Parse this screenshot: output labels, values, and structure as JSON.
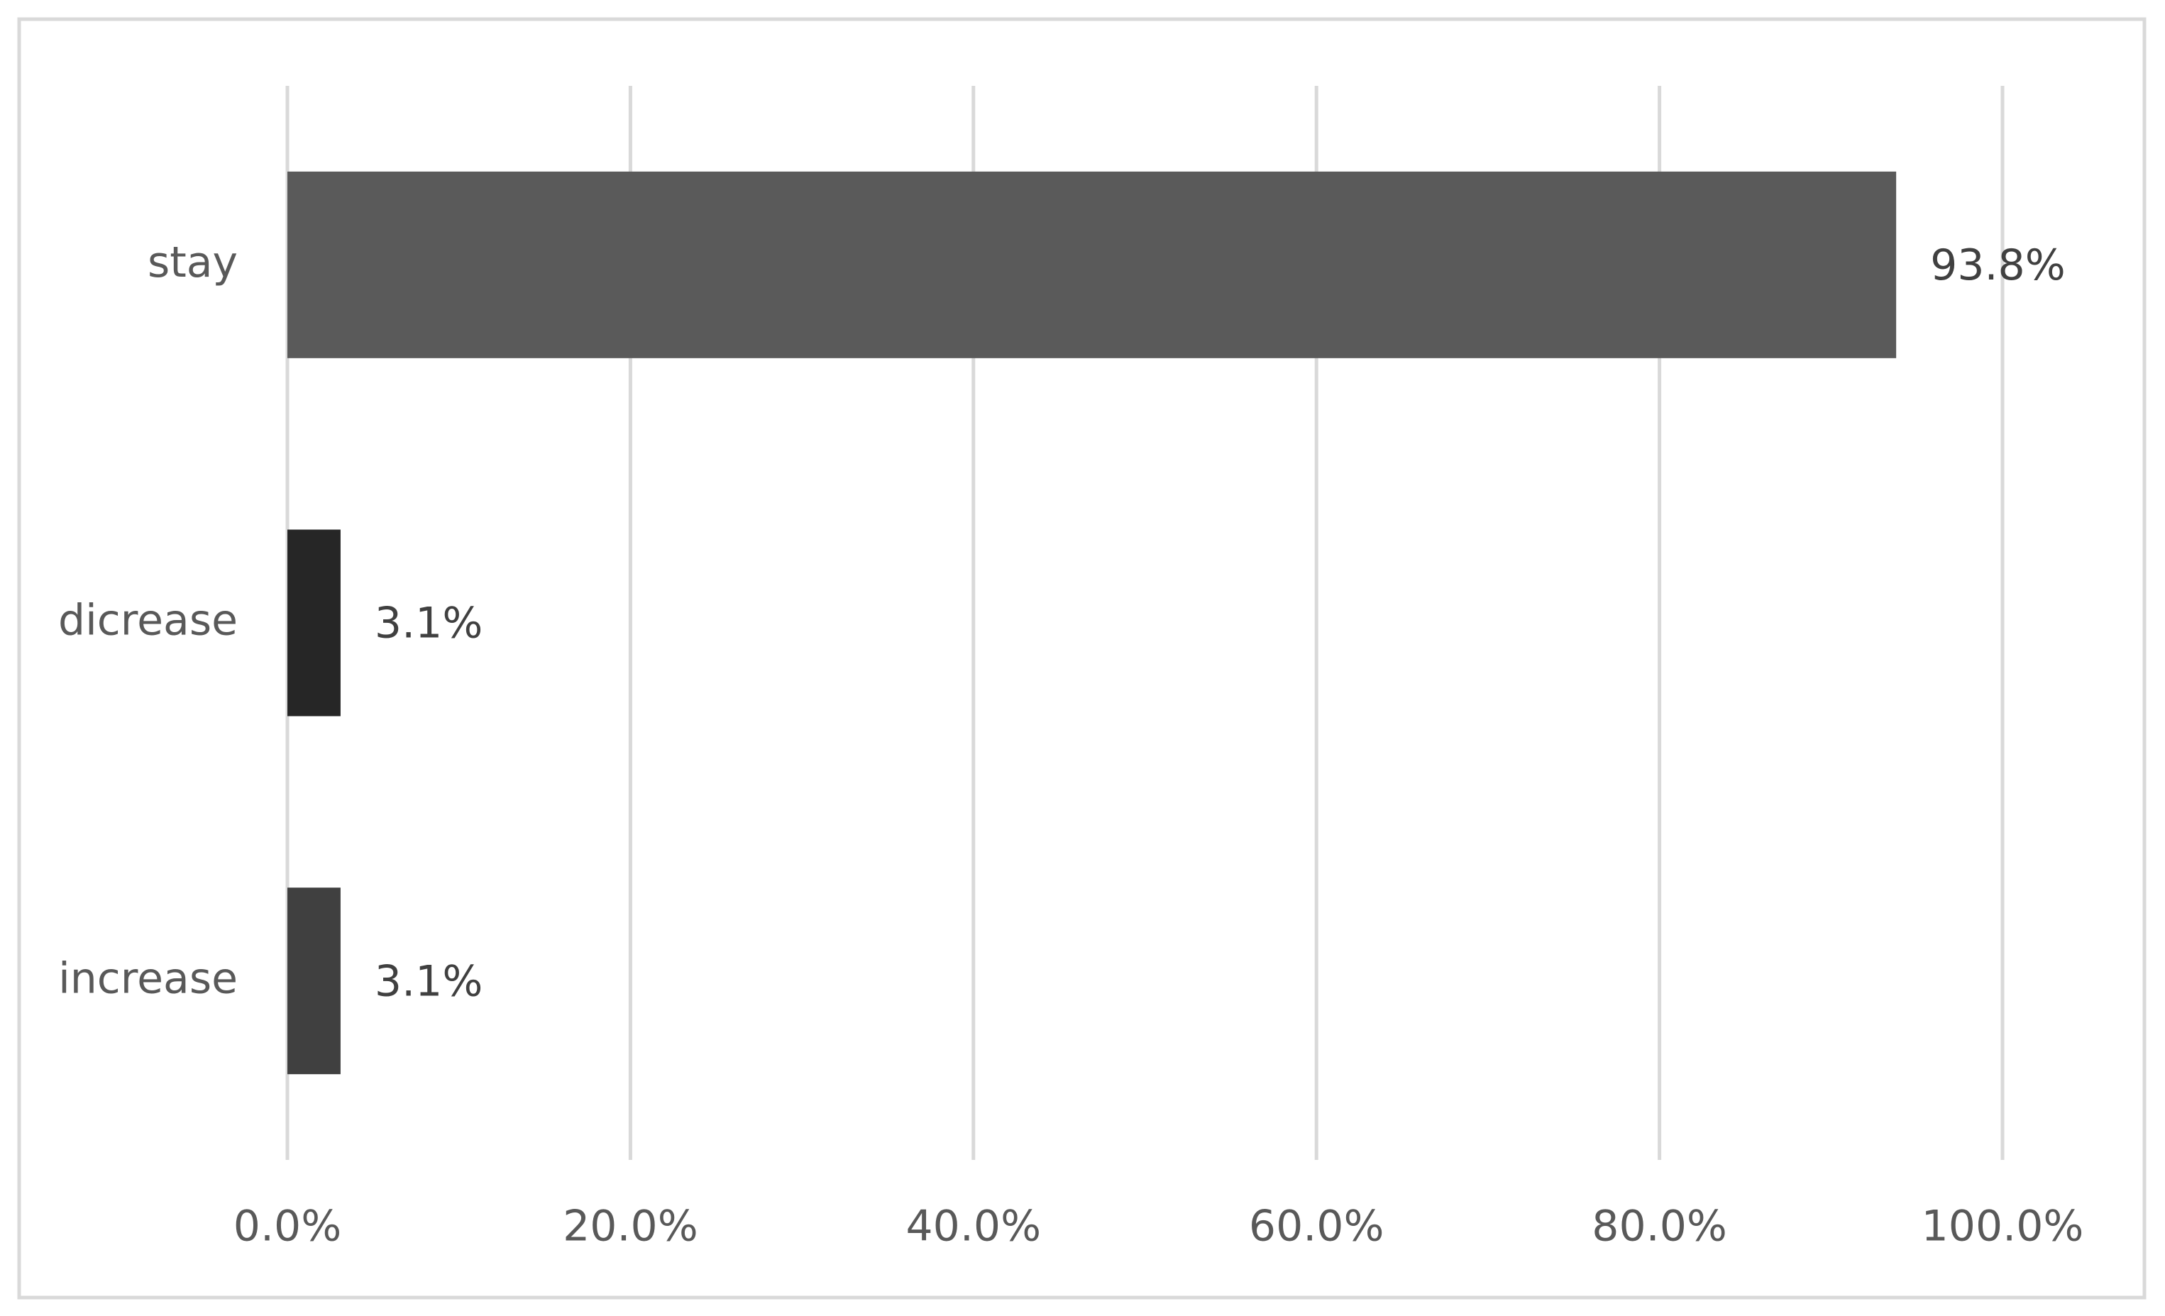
{
  "chart_data": {
    "type": "hbar",
    "categories": [
      "stay",
      "dicrease",
      "increase"
    ],
    "values": [
      93.8,
      3.1,
      3.1
    ],
    "value_labels": [
      "93.8%",
      "3.1%",
      "3.1%"
    ],
    "colors": [
      "#5a5a5a",
      "#262626",
      "#404040"
    ],
    "xlim": [
      0,
      100
    ],
    "xticks": [
      {
        "value": 0,
        "label": "0.0%"
      },
      {
        "value": 20,
        "label": "20.0%"
      },
      {
        "value": 40,
        "label": "40.0%"
      },
      {
        "value": 60,
        "label": "60.0%"
      },
      {
        "value": 80,
        "label": "80.0%"
      },
      {
        "value": 100,
        "label": "100.0%"
      }
    ],
    "grid": true
  }
}
